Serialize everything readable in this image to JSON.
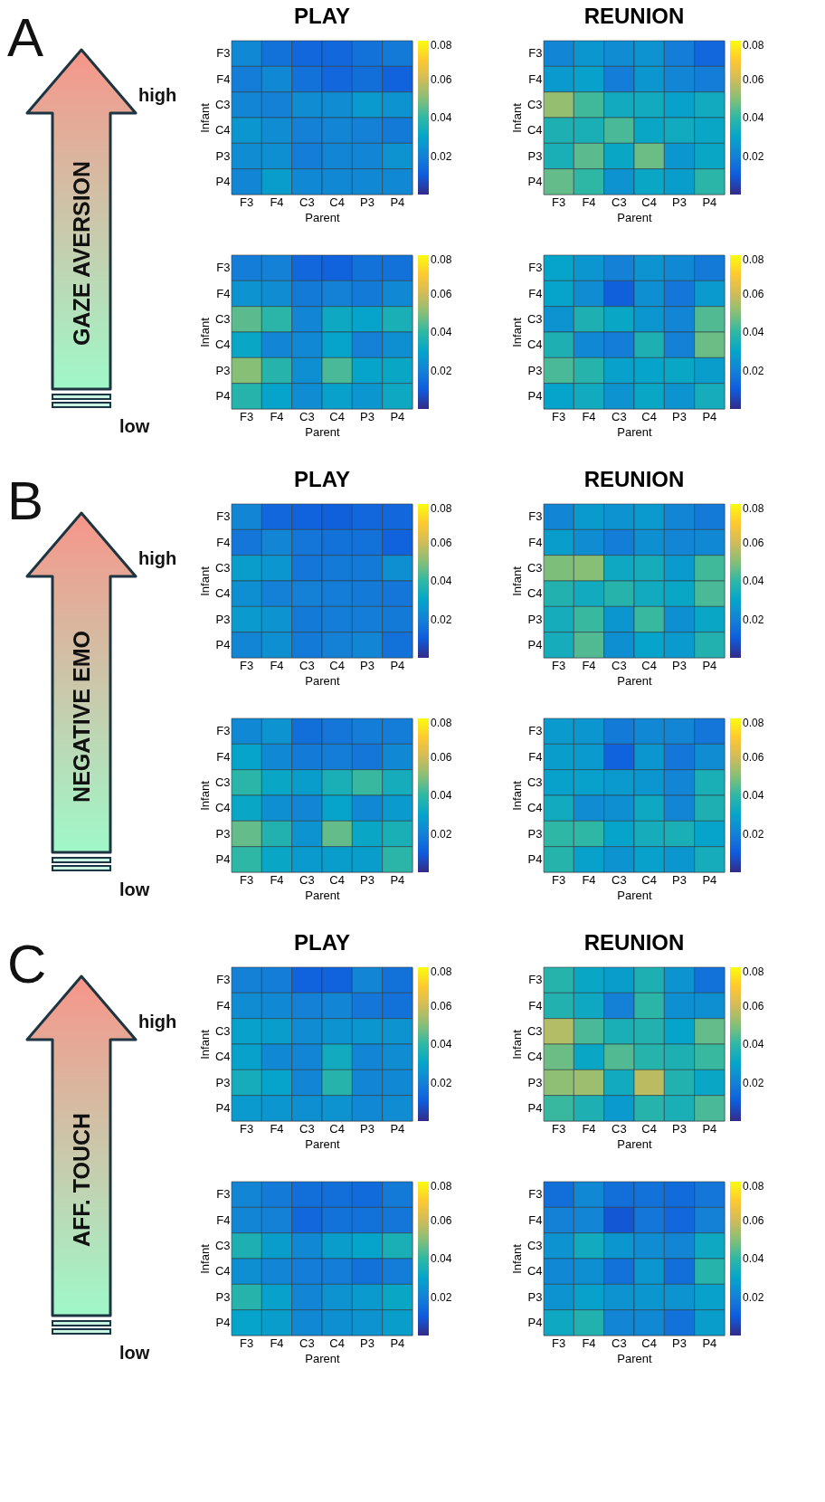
{
  "chart_data": [
    {
      "type": "other",
      "annotations": [
        "A",
        "high",
        "GAZE AVERSION",
        "low"
      ]
    },
    {
      "type": "heatmap",
      "title": "PLAY",
      "xlabel": "Parent",
      "ylabel": "Infant",
      "categories": [
        "F3",
        "F4",
        "C3",
        "C4",
        "P3",
        "P4"
      ],
      "y_categories": [
        "F3",
        "F4",
        "C3",
        "C4",
        "P3",
        "P4"
      ],
      "clim": [
        0,
        0.08
      ],
      "cticks": [
        0.02,
        0.04,
        0.06,
        0.08
      ],
      "cells": [
        [
          0.022,
          0.016,
          0.013,
          0.013,
          0.016,
          0.018
        ],
        [
          0.019,
          0.022,
          0.016,
          0.013,
          0.015,
          0.012
        ],
        [
          0.021,
          0.02,
          0.023,
          0.023,
          0.027,
          0.025
        ],
        [
          0.026,
          0.023,
          0.02,
          0.021,
          0.02,
          0.018
        ],
        [
          0.023,
          0.024,
          0.019,
          0.021,
          0.021,
          0.025
        ],
        [
          0.021,
          0.028,
          0.022,
          0.022,
          0.022,
          0.022
        ]
      ]
    },
    {
      "type": "heatmap",
      "title": "REUNION",
      "xlabel": "Parent",
      "ylabel": "Infant",
      "categories": [
        "F3",
        "F4",
        "C3",
        "C4",
        "P3",
        "P4"
      ],
      "y_categories": [
        "F3",
        "F4",
        "C3",
        "C4",
        "P3",
        "P4"
      ],
      "clim": [
        0,
        0.08
      ],
      "cticks": [
        0.02,
        0.04,
        0.06,
        0.08
      ],
      "cells": [
        [
          0.021,
          0.026,
          0.023,
          0.025,
          0.019,
          0.013
        ],
        [
          0.027,
          0.029,
          0.019,
          0.026,
          0.021,
          0.019
        ],
        [
          0.052,
          0.042,
          0.033,
          0.033,
          0.029,
          0.033
        ],
        [
          0.036,
          0.035,
          0.043,
          0.031,
          0.033,
          0.031
        ],
        [
          0.035,
          0.045,
          0.031,
          0.047,
          0.026,
          0.031
        ],
        [
          0.046,
          0.04,
          0.025,
          0.031,
          0.028,
          0.039
        ]
      ]
    },
    {
      "type": "heatmap",
      "xlabel": "Parent",
      "ylabel": "Infant",
      "categories": [
        "F3",
        "F4",
        "C3",
        "C4",
        "P3",
        "P4"
      ],
      "y_categories": [
        "F3",
        "F4",
        "C3",
        "C4",
        "P3",
        "P4"
      ],
      "clim": [
        0,
        0.08
      ],
      "cticks": [
        0.02,
        0.04,
        0.06,
        0.08
      ],
      "cells": [
        [
          0.019,
          0.02,
          0.013,
          0.012,
          0.016,
          0.016
        ],
        [
          0.025,
          0.023,
          0.018,
          0.02,
          0.018,
          0.022
        ],
        [
          0.045,
          0.039,
          0.021,
          0.032,
          0.03,
          0.035
        ],
        [
          0.031,
          0.021,
          0.022,
          0.03,
          0.02,
          0.024
        ],
        [
          0.05,
          0.038,
          0.024,
          0.043,
          0.03,
          0.031
        ],
        [
          0.038,
          0.03,
          0.023,
          0.029,
          0.026,
          0.032
        ]
      ]
    },
    {
      "type": "heatmap",
      "xlabel": "Parent",
      "ylabel": "Infant",
      "categories": [
        "F3",
        "F4",
        "C3",
        "C4",
        "P3",
        "P4"
      ],
      "y_categories": [
        "F3",
        "F4",
        "C3",
        "C4",
        "P3",
        "P4"
      ],
      "clim": [
        0,
        0.08
      ],
      "cticks": [
        0.02,
        0.04,
        0.06,
        0.08
      ],
      "cells": [
        [
          0.03,
          0.026,
          0.02,
          0.025,
          0.022,
          0.018
        ],
        [
          0.03,
          0.023,
          0.011,
          0.024,
          0.017,
          0.027
        ],
        [
          0.025,
          0.036,
          0.031,
          0.026,
          0.021,
          0.044
        ],
        [
          0.036,
          0.022,
          0.019,
          0.036,
          0.02,
          0.047
        ],
        [
          0.043,
          0.038,
          0.029,
          0.03,
          0.031,
          0.028
        ],
        [
          0.03,
          0.033,
          0.025,
          0.031,
          0.025,
          0.034
        ]
      ]
    },
    {
      "type": "other",
      "annotations": [
        "B",
        "high",
        "NEGATIVE EMO",
        "low"
      ]
    },
    {
      "type": "heatmap",
      "title": "PLAY",
      "xlabel": "Parent",
      "ylabel": "Infant",
      "categories": [
        "F3",
        "F4",
        "C3",
        "C4",
        "P3",
        "P4"
      ],
      "y_categories": [
        "F3",
        "F4",
        "C3",
        "C4",
        "P3",
        "P4"
      ],
      "clim": [
        0,
        0.08
      ],
      "cticks": [
        0.02,
        0.04,
        0.06,
        0.08
      ],
      "cells": [
        [
          0.021,
          0.013,
          0.012,
          0.011,
          0.013,
          0.013
        ],
        [
          0.017,
          0.021,
          0.017,
          0.016,
          0.016,
          0.012
        ],
        [
          0.028,
          0.026,
          0.017,
          0.018,
          0.018,
          0.024
        ],
        [
          0.024,
          0.02,
          0.02,
          0.019,
          0.018,
          0.017
        ],
        [
          0.027,
          0.025,
          0.018,
          0.019,
          0.019,
          0.018
        ],
        [
          0.021,
          0.024,
          0.018,
          0.02,
          0.021,
          0.016
        ]
      ]
    },
    {
      "type": "heatmap",
      "title": "REUNION",
      "xlabel": "Parent",
      "ylabel": "Infant",
      "categories": [
        "F3",
        "F4",
        "C3",
        "C4",
        "P3",
        "P4"
      ],
      "y_categories": [
        "F3",
        "F4",
        "C3",
        "C4",
        "P3",
        "P4"
      ],
      "clim": [
        0,
        0.08
      ],
      "cticks": [
        0.02,
        0.04,
        0.06,
        0.08
      ],
      "cells": [
        [
          0.021,
          0.027,
          0.025,
          0.027,
          0.021,
          0.018
        ],
        [
          0.028,
          0.023,
          0.019,
          0.024,
          0.021,
          0.022
        ],
        [
          0.049,
          0.05,
          0.032,
          0.034,
          0.027,
          0.042
        ],
        [
          0.037,
          0.033,
          0.038,
          0.033,
          0.031,
          0.043
        ],
        [
          0.034,
          0.041,
          0.026,
          0.041,
          0.024,
          0.031
        ],
        [
          0.034,
          0.044,
          0.024,
          0.03,
          0.027,
          0.037
        ]
      ]
    },
    {
      "type": "heatmap",
      "xlabel": "Parent",
      "ylabel": "Infant",
      "categories": [
        "F3",
        "F4",
        "C3",
        "C4",
        "P3",
        "P4"
      ],
      "y_categories": [
        "F3",
        "F4",
        "C3",
        "C4",
        "P3",
        "P4"
      ],
      "clim": [
        0,
        0.08
      ],
      "cticks": [
        0.02,
        0.04,
        0.06,
        0.08
      ],
      "cells": [
        [
          0.022,
          0.025,
          0.015,
          0.017,
          0.019,
          0.019
        ],
        [
          0.03,
          0.022,
          0.018,
          0.019,
          0.017,
          0.022
        ],
        [
          0.039,
          0.031,
          0.028,
          0.035,
          0.041,
          0.034
        ],
        [
          0.031,
          0.024,
          0.021,
          0.03,
          0.022,
          0.027
        ],
        [
          0.046,
          0.037,
          0.025,
          0.046,
          0.031,
          0.035
        ],
        [
          0.04,
          0.031,
          0.027,
          0.028,
          0.028,
          0.039
        ]
      ]
    },
    {
      "type": "heatmap",
      "xlabel": "Parent",
      "ylabel": "Infant",
      "categories": [
        "F3",
        "F4",
        "C3",
        "C4",
        "P3",
        "P4"
      ],
      "y_categories": [
        "F3",
        "F4",
        "C3",
        "C4",
        "P3",
        "P4"
      ],
      "clim": [
        0,
        0.08
      ],
      "cticks": [
        0.02,
        0.04,
        0.06,
        0.08
      ],
      "cells": [
        [
          0.027,
          0.026,
          0.018,
          0.022,
          0.021,
          0.017
        ],
        [
          0.028,
          0.027,
          0.012,
          0.026,
          0.017,
          0.023
        ],
        [
          0.029,
          0.029,
          0.027,
          0.026,
          0.021,
          0.035
        ],
        [
          0.033,
          0.023,
          0.024,
          0.032,
          0.021,
          0.036
        ],
        [
          0.04,
          0.04,
          0.03,
          0.034,
          0.035,
          0.03
        ],
        [
          0.038,
          0.029,
          0.025,
          0.029,
          0.026,
          0.034
        ]
      ]
    },
    {
      "type": "other",
      "annotations": [
        "C",
        "high",
        "AFF. TOUCH",
        "low"
      ]
    },
    {
      "type": "heatmap",
      "title": "PLAY",
      "xlabel": "Parent",
      "ylabel": "Infant",
      "categories": [
        "F3",
        "F4",
        "C3",
        "C4",
        "P3",
        "P4"
      ],
      "y_categories": [
        "F3",
        "F4",
        "C3",
        "C4",
        "P3",
        "P4"
      ],
      "clim": [
        0,
        0.08
      ],
      "cticks": [
        0.02,
        0.04,
        0.06,
        0.08
      ],
      "cells": [
        [
          0.02,
          0.019,
          0.012,
          0.012,
          0.021,
          0.016
        ],
        [
          0.023,
          0.022,
          0.02,
          0.021,
          0.017,
          0.016
        ],
        [
          0.029,
          0.028,
          0.023,
          0.025,
          0.026,
          0.025
        ],
        [
          0.029,
          0.022,
          0.021,
          0.033,
          0.021,
          0.023
        ],
        [
          0.034,
          0.03,
          0.021,
          0.038,
          0.021,
          0.022
        ],
        [
          0.027,
          0.026,
          0.024,
          0.025,
          0.022,
          0.023
        ]
      ]
    },
    {
      "type": "heatmap",
      "title": "REUNION",
      "xlabel": "Parent",
      "ylabel": "Infant",
      "categories": [
        "F3",
        "F4",
        "C3",
        "C4",
        "P3",
        "P4"
      ],
      "y_categories": [
        "F3",
        "F4",
        "C3",
        "C4",
        "P3",
        "P4"
      ],
      "clim": [
        0,
        0.08
      ],
      "cticks": [
        0.02,
        0.04,
        0.06,
        0.08
      ],
      "cells": [
        [
          0.038,
          0.031,
          0.028,
          0.036,
          0.025,
          0.016
        ],
        [
          0.037,
          0.032,
          0.02,
          0.039,
          0.024,
          0.024
        ],
        [
          0.056,
          0.043,
          0.035,
          0.037,
          0.03,
          0.046
        ],
        [
          0.047,
          0.031,
          0.044,
          0.038,
          0.036,
          0.041
        ],
        [
          0.051,
          0.053,
          0.033,
          0.057,
          0.037,
          0.031
        ],
        [
          0.041,
          0.036,
          0.027,
          0.038,
          0.035,
          0.043
        ]
      ]
    },
    {
      "type": "heatmap",
      "xlabel": "Parent",
      "ylabel": "Infant",
      "categories": [
        "F3",
        "F4",
        "C3",
        "C4",
        "P3",
        "P4"
      ],
      "y_categories": [
        "F3",
        "F4",
        "C3",
        "C4",
        "P3",
        "P4"
      ],
      "clim": [
        0,
        0.08
      ],
      "cticks": [
        0.02,
        0.04,
        0.06,
        0.08
      ],
      "cells": [
        [
          0.021,
          0.018,
          0.015,
          0.015,
          0.014,
          0.018
        ],
        [
          0.021,
          0.02,
          0.013,
          0.016,
          0.016,
          0.017
        ],
        [
          0.036,
          0.028,
          0.022,
          0.028,
          0.03,
          0.035
        ],
        [
          0.024,
          0.021,
          0.019,
          0.019,
          0.016,
          0.019
        ],
        [
          0.038,
          0.029,
          0.021,
          0.025,
          0.027,
          0.031
        ],
        [
          0.03,
          0.028,
          0.022,
          0.024,
          0.025,
          0.028
        ]
      ]
    },
    {
      "type": "heatmap",
      "xlabel": "Parent",
      "ylabel": "Infant",
      "categories": [
        "F3",
        "F4",
        "C3",
        "C4",
        "P3",
        "P4"
      ],
      "y_categories": [
        "F3",
        "F4",
        "C3",
        "C4",
        "P3",
        "P4"
      ],
      "clim": [
        0,
        0.08
      ],
      "cticks": [
        0.02,
        0.04,
        0.06,
        0.08
      ],
      "cells": [
        [
          0.015,
          0.022,
          0.015,
          0.016,
          0.014,
          0.017
        ],
        [
          0.02,
          0.021,
          0.009,
          0.017,
          0.013,
          0.02
        ],
        [
          0.025,
          0.033,
          0.026,
          0.023,
          0.021,
          0.032
        ],
        [
          0.022,
          0.024,
          0.016,
          0.026,
          0.015,
          0.038
        ],
        [
          0.025,
          0.029,
          0.025,
          0.026,
          0.025,
          0.029
        ],
        [
          0.032,
          0.037,
          0.021,
          0.022,
          0.016,
          0.028
        ]
      ]
    }
  ]
}
